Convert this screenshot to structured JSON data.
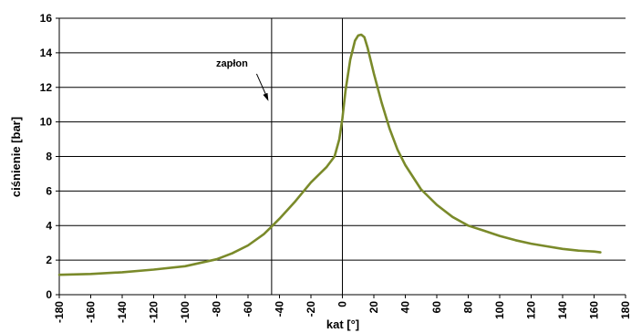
{
  "chart_data": {
    "type": "line",
    "title": "",
    "xlabel": "kat [°]",
    "ylabel": "ciśnienie [bar]",
    "xlim": [
      -180,
      180
    ],
    "ylim": [
      0,
      16
    ],
    "x_ticks": [
      -180,
      -160,
      -140,
      -120,
      -100,
      -80,
      -60,
      -40,
      -20,
      0,
      20,
      40,
      60,
      80,
      100,
      120,
      140,
      160,
      180
    ],
    "y_ticks": [
      0,
      2,
      4,
      6,
      8,
      10,
      12,
      14,
      16
    ],
    "grid": "horizontal",
    "series": [
      {
        "color": "#7a8a2a",
        "x": [
          -180,
          -160,
          -140,
          -120,
          -100,
          -80,
          -70,
          -60,
          -50,
          -46,
          -40,
          -30,
          -20,
          -10,
          -5,
          -2,
          0,
          2,
          5,
          8,
          10,
          12,
          14,
          16,
          20,
          25,
          30,
          35,
          40,
          50,
          60,
          70,
          80,
          90,
          100,
          110,
          120,
          130,
          140,
          150,
          160,
          164
        ],
        "y": [
          1.15,
          1.2,
          1.3,
          1.45,
          1.65,
          2.05,
          2.4,
          2.85,
          3.5,
          3.85,
          4.4,
          5.4,
          6.5,
          7.4,
          8.0,
          9.0,
          10.2,
          11.8,
          13.6,
          14.7,
          15.0,
          15.05,
          14.9,
          14.3,
          12.8,
          11.1,
          9.6,
          8.4,
          7.5,
          6.1,
          5.2,
          4.5,
          4.0,
          3.7,
          3.4,
          3.15,
          2.95,
          2.8,
          2.65,
          2.55,
          2.5,
          2.45
        ]
      }
    ],
    "vertical_lines_x": [
      -45,
      0
    ],
    "annotations": [
      {
        "text": "zapłon",
        "points_to_x": -47,
        "points_to_y": 11.2
      }
    ]
  }
}
